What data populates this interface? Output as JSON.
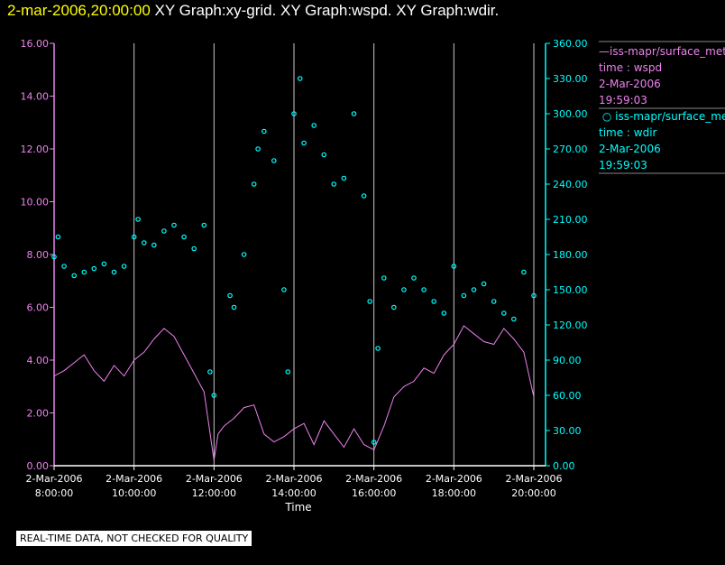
{
  "header": {
    "timestamp": "2-mar-2006,20:00:00",
    "graphs": "XY Graph:xy-grid.  XY Graph:wspd.  XY Graph:wdir."
  },
  "colors": {
    "wspd": "#ee82ee",
    "wdir": "#00ffff",
    "grid": "#c8c8c8",
    "axis_text": "#ffffff"
  },
  "legend": [
    {
      "name": "iss-mapr/surface_met",
      "marker": "line",
      "var": "time : wspd",
      "date": "2-Mar-2006",
      "time": "19:59:03"
    },
    {
      "name": "iss-mapr/surface_met",
      "marker": "circle",
      "var": "time : wdir",
      "date": "2-Mar-2006",
      "time": "19:59:03"
    }
  ],
  "footer": {
    "quality": "REAL-TIME DATA, NOT CHECKED FOR QUALITY"
  },
  "chart_data": {
    "type": "line",
    "xlabel": "Time",
    "x_ticks": [
      {
        "date": "2-Mar-2006",
        "time": "8:00:00",
        "hour": 8
      },
      {
        "date": "2-Mar-2006",
        "time": "10:00:00",
        "hour": 10
      },
      {
        "date": "2-Mar-2006",
        "time": "12:00:00",
        "hour": 12
      },
      {
        "date": "2-Mar-2006",
        "time": "14:00:00",
        "hour": 14
      },
      {
        "date": "2-Mar-2006",
        "time": "16:00:00",
        "hour": 16
      },
      {
        "date": "2-Mar-2006",
        "time": "18:00:00",
        "hour": 18
      },
      {
        "date": "2-Mar-2006",
        "time": "20:00:00",
        "hour": 20
      }
    ],
    "xlim": [
      8,
      20
    ],
    "left_axis": {
      "lim": [
        0,
        16
      ],
      "ticks": [
        "0.00",
        "2.00",
        "4.00",
        "6.00",
        "8.00",
        "10.00",
        "12.00",
        "14.00",
        "16.00"
      ]
    },
    "right_axis": {
      "lim": [
        0,
        360
      ],
      "ticks": [
        "0.00",
        "30.00",
        "60.00",
        "90.00",
        "120.00",
        "150.00",
        "180.00",
        "210.00",
        "240.00",
        "270.00",
        "300.00",
        "330.00",
        "360.00"
      ]
    },
    "grid": "vertical",
    "series": [
      {
        "var": "wspd",
        "axis": "left",
        "style": "line",
        "points": [
          [
            8.0,
            3.4
          ],
          [
            8.25,
            3.6
          ],
          [
            8.5,
            3.9
          ],
          [
            8.75,
            4.2
          ],
          [
            9.0,
            3.6
          ],
          [
            9.25,
            3.2
          ],
          [
            9.5,
            3.8
          ],
          [
            9.75,
            3.4
          ],
          [
            10.0,
            4.0
          ],
          [
            10.25,
            4.3
          ],
          [
            10.5,
            4.8
          ],
          [
            10.75,
            5.2
          ],
          [
            11.0,
            4.9
          ],
          [
            11.25,
            4.2
          ],
          [
            11.5,
            3.5
          ],
          [
            11.75,
            2.8
          ],
          [
            12.0,
            0.2
          ],
          [
            12.1,
            1.2
          ],
          [
            12.25,
            1.5
          ],
          [
            12.5,
            1.8
          ],
          [
            12.75,
            2.2
          ],
          [
            13.0,
            2.3
          ],
          [
            13.25,
            1.2
          ],
          [
            13.5,
            0.9
          ],
          [
            13.75,
            1.1
          ],
          [
            14.0,
            1.4
          ],
          [
            14.25,
            1.6
          ],
          [
            14.5,
            0.8
          ],
          [
            14.75,
            1.7
          ],
          [
            15.0,
            1.2
          ],
          [
            15.25,
            0.7
          ],
          [
            15.5,
            1.4
          ],
          [
            15.75,
            0.8
          ],
          [
            16.0,
            0.6
          ],
          [
            16.25,
            1.5
          ],
          [
            16.5,
            2.6
          ],
          [
            16.75,
            3.0
          ],
          [
            17.0,
            3.2
          ],
          [
            17.25,
            3.7
          ],
          [
            17.5,
            3.5
          ],
          [
            17.75,
            4.2
          ],
          [
            18.0,
            4.6
          ],
          [
            18.25,
            5.3
          ],
          [
            18.5,
            5.0
          ],
          [
            18.75,
            4.7
          ],
          [
            19.0,
            4.6
          ],
          [
            19.25,
            5.2
          ],
          [
            19.5,
            4.8
          ],
          [
            19.75,
            4.3
          ],
          [
            20.0,
            2.6
          ]
        ]
      },
      {
        "var": "wdir",
        "axis": "right",
        "style": "circle",
        "points": [
          [
            8.0,
            178
          ],
          [
            8.1,
            195
          ],
          [
            8.25,
            170
          ],
          [
            8.5,
            162
          ],
          [
            8.75,
            165
          ],
          [
            9.0,
            168
          ],
          [
            9.25,
            172
          ],
          [
            9.5,
            165
          ],
          [
            9.75,
            170
          ],
          [
            10.0,
            195
          ],
          [
            10.1,
            210
          ],
          [
            10.25,
            190
          ],
          [
            10.5,
            188
          ],
          [
            10.75,
            200
          ],
          [
            11.0,
            205
          ],
          [
            11.25,
            195
          ],
          [
            11.5,
            185
          ],
          [
            11.75,
            205
          ],
          [
            11.9,
            80
          ],
          [
            12.0,
            60
          ],
          [
            12.4,
            145
          ],
          [
            12.5,
            135
          ],
          [
            12.75,
            180
          ],
          [
            13.0,
            240
          ],
          [
            13.1,
            270
          ],
          [
            13.25,
            285
          ],
          [
            13.5,
            260
          ],
          [
            13.75,
            150
          ],
          [
            13.85,
            80
          ],
          [
            14.0,
            300
          ],
          [
            14.15,
            330
          ],
          [
            14.25,
            275
          ],
          [
            14.5,
            290
          ],
          [
            14.75,
            265
          ],
          [
            15.0,
            240
          ],
          [
            15.25,
            245
          ],
          [
            15.5,
            300
          ],
          [
            15.75,
            230
          ],
          [
            15.9,
            140
          ],
          [
            16.0,
            20
          ],
          [
            16.1,
            100
          ],
          [
            16.25,
            160
          ],
          [
            16.5,
            135
          ],
          [
            16.75,
            150
          ],
          [
            17.0,
            160
          ],
          [
            17.25,
            150
          ],
          [
            17.5,
            140
          ],
          [
            17.75,
            130
          ],
          [
            18.0,
            170
          ],
          [
            18.25,
            145
          ],
          [
            18.5,
            150
          ],
          [
            18.75,
            155
          ],
          [
            19.0,
            140
          ],
          [
            19.25,
            130
          ],
          [
            19.5,
            125
          ],
          [
            19.75,
            165
          ],
          [
            20.0,
            145
          ]
        ]
      }
    ]
  }
}
